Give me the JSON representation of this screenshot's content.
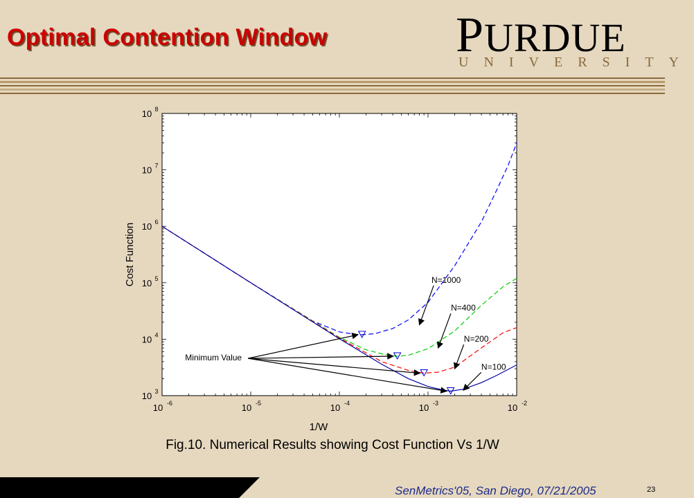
{
  "slide": {
    "title": "Optimal Contention Window",
    "logo_word": "PURDUE",
    "logo_sub": "UNIVERSITY",
    "caption": "Fig.10. Numerical Results showing Cost Function Vs 1/W",
    "footer": "SenMetrics'05, San Diego,     07/21/2005",
    "page_number": "23"
  },
  "colors": {
    "background": "#e6d8bf",
    "title": "#cc0000",
    "footer_text": "#1d2b8a",
    "n1000": "#0000ff",
    "n400": "#00cc00",
    "n200": "#ff0000",
    "n100": "#0000aa"
  },
  "chart_data": {
    "type": "line",
    "xscale": "log",
    "yscale": "log",
    "xlim": [
      1e-06,
      0.01
    ],
    "ylim": [
      1000,
      100000000
    ],
    "xlabel": "1/W",
    "ylabel": "Cost Function",
    "x_ticks": [
      {
        "value": 1e-06,
        "base": "10",
        "exp": "-6"
      },
      {
        "value": 1e-05,
        "base": "10",
        "exp": "-5"
      },
      {
        "value": 0.0001,
        "base": "10",
        "exp": "-4"
      },
      {
        "value": 0.001,
        "base": "10",
        "exp": "-3"
      },
      {
        "value": 0.01,
        "base": "10",
        "exp": "-2"
      }
    ],
    "y_ticks": [
      {
        "value": 1000,
        "base": "10",
        "exp": "3"
      },
      {
        "value": 10000,
        "base": "10",
        "exp": "4"
      },
      {
        "value": 100000,
        "base": "10",
        "exp": "5"
      },
      {
        "value": 1000000,
        "base": "10",
        "exp": "6"
      },
      {
        "value": 10000000,
        "base": "10",
        "exp": "7"
      },
      {
        "value": 100000000,
        "base": "10",
        "exp": "8"
      }
    ],
    "series": [
      {
        "name": "N=1000",
        "color": "#0000ff",
        "dash": "dashed",
        "x": [
          1e-06,
          1e-05,
          5e-05,
          0.0001,
          0.00015,
          0.00018,
          0.00025,
          0.0004,
          0.0006,
          0.001,
          0.002,
          0.004,
          0.006,
          0.008,
          0.01
        ],
        "y": [
          1000000,
          100000,
          21000,
          13500,
          12200,
          12000,
          12500,
          15500,
          22000,
          45000,
          200000,
          1200000,
          4500000,
          12000000,
          30000000
        ],
        "min_x": 0.00018,
        "min_y": 12000
      },
      {
        "name": "N=400",
        "color": "#00cc00",
        "dash": "dashed",
        "x": [
          1e-06,
          1e-05,
          0.0001,
          0.0002,
          0.0003,
          0.00045,
          0.0006,
          0.001,
          0.002,
          0.004,
          0.007,
          0.01
        ],
        "y": [
          1000000,
          100000,
          10800,
          6500,
          5500,
          5000,
          5200,
          6800,
          14000,
          40000,
          85000,
          120000
        ],
        "min_x": 0.00045,
        "min_y": 5000
      },
      {
        "name": "N=200",
        "color": "#ff0000",
        "dash": "dashed",
        "x": [
          1e-06,
          1e-05,
          0.0001,
          0.0003,
          0.0006,
          0.0009,
          0.0013,
          0.002,
          0.004,
          0.007,
          0.01
        ],
        "y": [
          1000000,
          100000,
          10500,
          4000,
          2800,
          2500,
          2600,
          3200,
          7000,
          13000,
          16000
        ],
        "min_x": 0.0009,
        "min_y": 2500
      },
      {
        "name": "N=100",
        "color": "#0000aa",
        "dash": "solid",
        "x": [
          1e-06,
          1e-05,
          0.0001,
          0.0003,
          0.0006,
          0.001,
          0.0015,
          0.0018,
          0.0025,
          0.004,
          0.006,
          0.01
        ],
        "y": [
          1000000,
          100000,
          10200,
          3600,
          2000,
          1450,
          1250,
          1200,
          1300,
          1700,
          2300,
          3500
        ],
        "min_x": 0.0018,
        "min_y": 1200
      }
    ],
    "annotations": [
      {
        "id": "n1000",
        "text": "N=1000",
        "lx": 0.0016,
        "ly": 100000,
        "ax": 0.0008,
        "ay": 18000
      },
      {
        "id": "n400",
        "text": "N=400",
        "lx": 0.0025,
        "ly": 32000,
        "ax": 0.0013,
        "ay": 7000
      },
      {
        "id": "n200",
        "text": "N=200",
        "lx": 0.0035,
        "ly": 9000,
        "ax": 0.002,
        "ay": 3000
      },
      {
        "id": "n100",
        "text": "N=100",
        "lx": 0.0055,
        "ly": 2900,
        "ax": 0.0025,
        "ay": 1250
      }
    ],
    "min_label": {
      "text": "Minimum Value",
      "lx": 3.8e-06,
      "ly": 4200
    }
  }
}
